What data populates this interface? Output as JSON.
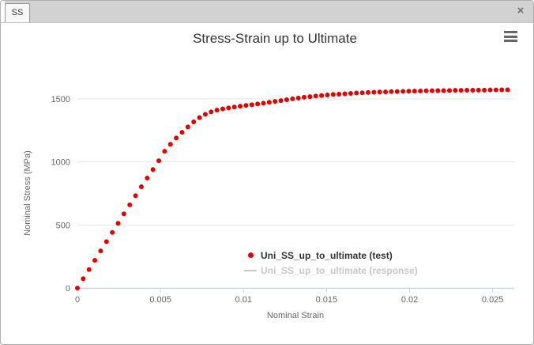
{
  "window": {
    "tab_label": "SS",
    "close_glyph": "×",
    "icons": {
      "close": "close-icon",
      "menu": "hamburger-menu-icon"
    }
  },
  "colors": {
    "test_series": "#e80000",
    "hidden_series": "#c8c8c8",
    "grid": "#e6e6e6",
    "axis_line": "#ccd6eb",
    "axis_text": "#666666",
    "title_text": "#333333",
    "tab_bar": "#d2d2d2"
  },
  "chart_data": {
    "type": "scatter",
    "title": "Stress-Strain up to Ultimate",
    "xlabel": "Nominal Strain",
    "ylabel": "Nominal Stress (MPa)",
    "xlim": [
      0,
      0.0263
    ],
    "ylim": [
      0,
      1600
    ],
    "x_ticks": [
      0,
      0.005,
      0.01,
      0.015,
      0.02,
      0.025
    ],
    "x_tick_labels": [
      "0",
      "0.005",
      "0.01",
      "0.015",
      "0.02",
      "0.025"
    ],
    "y_ticks": [
      0,
      500,
      1000,
      1500
    ],
    "y_tick_labels": [
      "0",
      "500",
      "1000",
      "1500"
    ],
    "grid": "horizontal-only",
    "legend_position": "inside-bottom-center",
    "series": [
      {
        "name": "Uni_SS_up_to_ultimate (test)",
        "type": "scatter",
        "color": "#e80000",
        "visible": true,
        "points": [
          [
            0.0,
            0
          ],
          [
            0.00035,
            74
          ],
          [
            0.0007,
            147
          ],
          [
            0.00105,
            220
          ],
          [
            0.0014,
            294
          ],
          [
            0.00175,
            368
          ],
          [
            0.0021,
            441
          ],
          [
            0.00245,
            514
          ],
          [
            0.0028,
            588
          ],
          [
            0.00315,
            660
          ],
          [
            0.0035,
            732
          ],
          [
            0.00385,
            803
          ],
          [
            0.0042,
            872
          ],
          [
            0.00455,
            940
          ],
          [
            0.0049,
            1010
          ],
          [
            0.00525,
            1085
          ],
          [
            0.0056,
            1140
          ],
          [
            0.00595,
            1190
          ],
          [
            0.0063,
            1235
          ],
          [
            0.00665,
            1278
          ],
          [
            0.007,
            1318
          ],
          [
            0.00735,
            1352
          ],
          [
            0.0077,
            1378
          ],
          [
            0.00805,
            1397
          ],
          [
            0.0084,
            1411
          ],
          [
            0.00875,
            1421
          ],
          [
            0.0091,
            1429
          ],
          [
            0.00945,
            1436
          ],
          [
            0.0098,
            1442
          ],
          [
            0.01015,
            1448
          ],
          [
            0.0105,
            1454
          ],
          [
            0.01085,
            1460
          ],
          [
            0.0112,
            1466
          ],
          [
            0.01155,
            1473
          ],
          [
            0.0119,
            1480
          ],
          [
            0.01225,
            1487
          ],
          [
            0.0126,
            1494
          ],
          [
            0.01295,
            1501
          ],
          [
            0.0133,
            1507
          ],
          [
            0.01365,
            1513
          ],
          [
            0.014,
            1518
          ],
          [
            0.01435,
            1523
          ],
          [
            0.0147,
            1527
          ],
          [
            0.01505,
            1531
          ],
          [
            0.0154,
            1535
          ],
          [
            0.01575,
            1538
          ],
          [
            0.0161,
            1541
          ],
          [
            0.01645,
            1544
          ],
          [
            0.0168,
            1547
          ],
          [
            0.01715,
            1549
          ],
          [
            0.0175,
            1551
          ],
          [
            0.01785,
            1553
          ],
          [
            0.0182,
            1555
          ],
          [
            0.01855,
            1556
          ],
          [
            0.0189,
            1558
          ],
          [
            0.01925,
            1559
          ],
          [
            0.0196,
            1560
          ],
          [
            0.01995,
            1561
          ],
          [
            0.0203,
            1562
          ],
          [
            0.02065,
            1563
          ],
          [
            0.021,
            1564
          ],
          [
            0.02135,
            1565
          ],
          [
            0.0217,
            1566
          ],
          [
            0.02205,
            1566
          ],
          [
            0.0224,
            1567
          ],
          [
            0.02275,
            1568
          ],
          [
            0.0231,
            1568
          ],
          [
            0.02345,
            1569
          ],
          [
            0.0238,
            1569
          ],
          [
            0.02415,
            1570
          ],
          [
            0.0245,
            1570
          ],
          [
            0.02485,
            1571
          ],
          [
            0.0252,
            1571
          ],
          [
            0.02555,
            1572
          ],
          [
            0.0259,
            1572
          ]
        ]
      },
      {
        "name": "Uni_SS_up_to_ultimate (response)",
        "type": "line",
        "color": "#c8c8c8",
        "visible": false,
        "points": []
      }
    ]
  }
}
